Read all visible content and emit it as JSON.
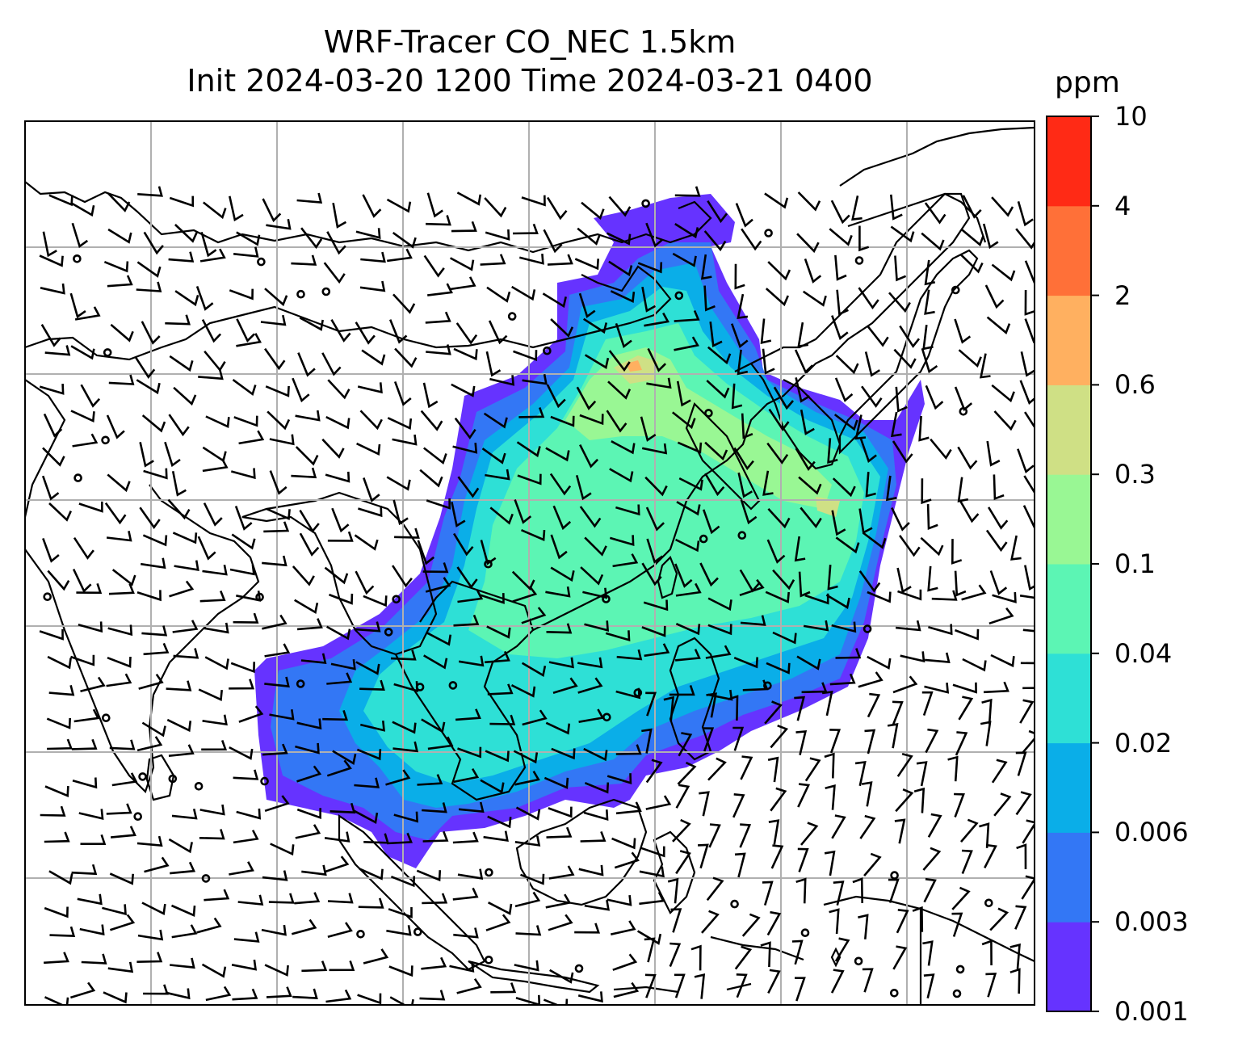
{
  "title": {
    "line1": "WRF-Tracer CO_NEC 1.5km",
    "line2": "Init 2024-03-20 1200 Time 2024-03-21 0400"
  },
  "colorbar": {
    "unit": "ppm",
    "levels": [
      "0.001",
      "0.003",
      "0.006",
      "0.02",
      "0.04",
      "0.1",
      "0.3",
      "0.6",
      "2",
      "4",
      "10"
    ],
    "colors": [
      "#6633ff",
      "#3377f5",
      "#0aaee8",
      "#2ee0d6",
      "#5cf5b4",
      "#99f794",
      "#cfe085",
      "#ffb060",
      "#ff7038",
      "#ff2a15"
    ]
  },
  "map": {
    "tracer": "CO_NEC",
    "level": "1.5km",
    "gridlines": true,
    "coastlines": true,
    "wind_barbs": true
  }
}
